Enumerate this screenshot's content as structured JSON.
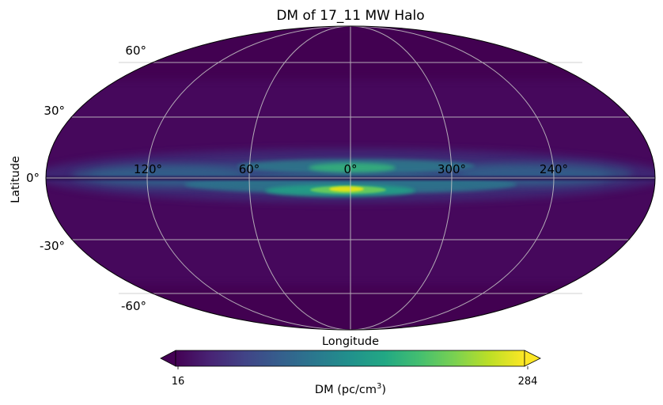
{
  "chart_data": {
    "type": "heatmap",
    "projection": "mollweide",
    "title": "DM of 17_11 MW Halo",
    "xlabel": "Longitude",
    "ylabel": "Latitude",
    "longitude_tick_labels": [
      "120°",
      "60°",
      "0°",
      "300°",
      "240°"
    ],
    "longitude_tick_values": [
      120,
      60,
      0,
      300,
      240
    ],
    "latitude_tick_labels": [
      "60°",
      "30°",
      "0°",
      "-30°",
      "-60°"
    ],
    "latitude_tick_values": [
      60,
      30,
      0,
      -30,
      -60
    ],
    "grid": true,
    "colormap": "viridis",
    "colorbar": {
      "label_prefix": "DM (pc/cm",
      "label_superscript": "3",
      "label_suffix": ")",
      "min": 16,
      "max": 284,
      "min_label": "16",
      "max_label": "284",
      "extend": "both"
    },
    "features": [
      {
        "description": "bright compact core near galactic centre, just below equator",
        "lon": 0,
        "lat": -5,
        "dm": 284
      },
      {
        "description": "secondary bright patch above equator near centre",
        "lon": 5,
        "lat": 4,
        "dm": 180
      },
      {
        "description": "dark dust lane along the equator",
        "lat": 0,
        "dm": 30
      },
      {
        "description": "enhanced band along the galactic plane",
        "lat_range": [
          -15,
          15
        ],
        "dm": 90
      },
      {
        "description": "high-latitude background",
        "dm": 25
      }
    ]
  }
}
